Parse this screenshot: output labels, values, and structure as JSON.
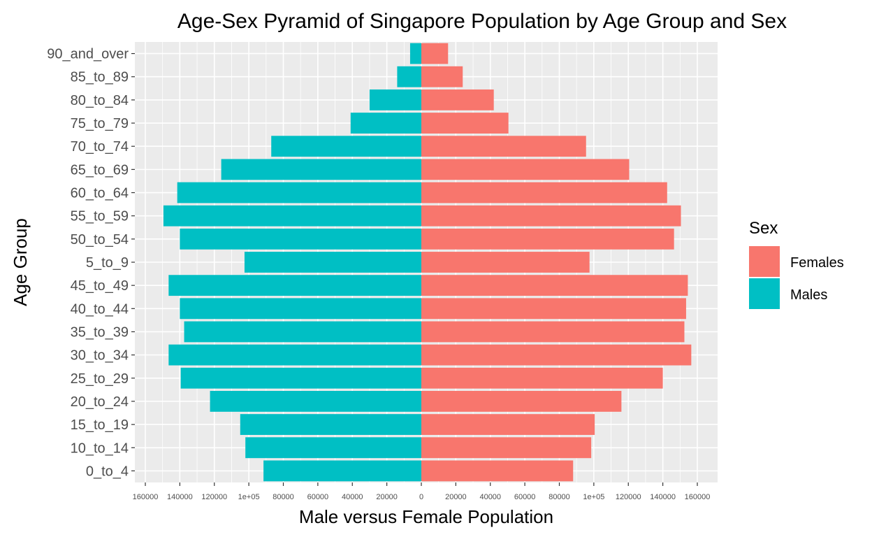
{
  "chart_data": {
    "type": "bar",
    "orientation": "horizontal",
    "title": "Age-Sex Pyramid of Singapore Population by Age Group and Sex",
    "xlabel": "Male versus Female Population",
    "ylabel": "Age Group",
    "xlim": [
      -160000,
      160000
    ],
    "x_ticks": [
      -160000,
      -140000,
      -120000,
      -100000,
      -80000,
      -60000,
      -40000,
      -20000,
      0,
      20000,
      40000,
      60000,
      80000,
      100000,
      120000,
      140000,
      160000
    ],
    "x_tick_labels": [
      "160000",
      "140000",
      "120000",
      "1e+05",
      "80000",
      "60000",
      "40000",
      "20000",
      "0",
      "20000",
      "40000",
      "60000",
      "80000",
      "1e+05",
      "120000",
      "140000",
      "160000"
    ],
    "categories": [
      "0_to_4",
      "10_to_14",
      "15_to_19",
      "20_to_24",
      "25_to_29",
      "30_to_34",
      "35_to_39",
      "40_to_44",
      "45_to_49",
      "5_to_9",
      "50_to_54",
      "55_to_59",
      "60_to_64",
      "65_to_69",
      "70_to_74",
      "75_to_79",
      "80_to_84",
      "85_to_89",
      "90_and_over"
    ],
    "series": [
      {
        "name": "Females",
        "color": "#F8766D",
        "values": [
          88000,
          98500,
          100500,
          116000,
          140000,
          156500,
          152500,
          153500,
          154500,
          97500,
          146500,
          150500,
          142500,
          120500,
          95500,
          50500,
          42000,
          24000,
          15500
        ]
      },
      {
        "name": "Males",
        "color": "#00BFC4",
        "values": [
          -91500,
          -102000,
          -105000,
          -122500,
          -139500,
          -146500,
          -137500,
          -140000,
          -146500,
          -102500,
          -140000,
          -149500,
          -141500,
          -116000,
          -87000,
          -41000,
          -30000,
          -14000,
          -6500
        ]
      }
    ],
    "grid": true,
    "panel_background": "#EBEBEB",
    "legend": {
      "title": "Sex",
      "position": "right",
      "entries": [
        "Females",
        "Males"
      ]
    }
  }
}
